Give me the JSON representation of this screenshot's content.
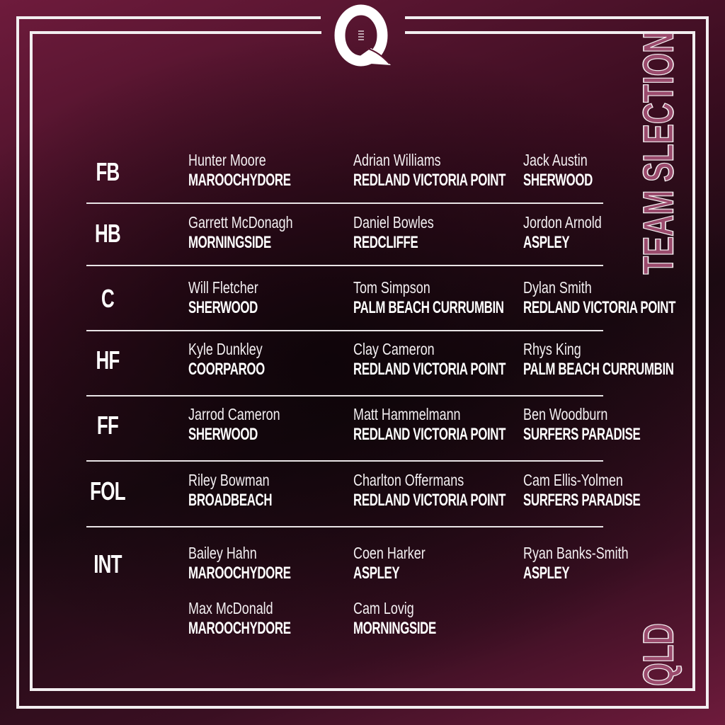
{
  "title": "TEAM SLECTION",
  "state": "QLD",
  "logo_text": "Q",
  "colors": {
    "maroon": "#6e1b3c",
    "dark": "#1c0a12",
    "white": "#ffffff"
  },
  "rows": [
    {
      "position": "FB",
      "players": [
        {
          "name": "Hunter Moore",
          "club": "MAROOCHYDORE"
        },
        {
          "name": "Adrian Williams",
          "club": "REDLAND VICTORIA POINT"
        },
        {
          "name": "Jack Austin",
          "club": "SHERWOOD"
        }
      ]
    },
    {
      "position": "HB",
      "players": [
        {
          "name": "Garrett McDonagh",
          "club": "MORNINGSIDE"
        },
        {
          "name": "Daniel Bowles",
          "club": "REDCLIFFE"
        },
        {
          "name": "Jordon Arnold",
          "club": "ASPLEY"
        }
      ]
    },
    {
      "position": "C",
      "players": [
        {
          "name": "Will Fletcher",
          "club": "SHERWOOD"
        },
        {
          "name": "Tom Simpson",
          "club": "PALM BEACH CURRUMBIN"
        },
        {
          "name": "Dylan Smith",
          "club": "REDLAND VICTORIA POINT"
        }
      ]
    },
    {
      "position": "HF",
      "players": [
        {
          "name": "Kyle Dunkley",
          "club": "COORPAROO"
        },
        {
          "name": "Clay Cameron",
          "club": "REDLAND VICTORIA POINT"
        },
        {
          "name": "Rhys King",
          "club": "PALM BEACH CURRUMBIN"
        }
      ]
    },
    {
      "position": "FF",
      "players": [
        {
          "name": "Jarrod Cameron",
          "club": "SHERWOOD"
        },
        {
          "name": "Matt Hammelmann",
          "club": "REDLAND VICTORIA POINT"
        },
        {
          "name": "Ben Woodburn",
          "club": "SURFERS PARADISE"
        }
      ]
    },
    {
      "position": "FOL",
      "players": [
        {
          "name": "Riley Bowman",
          "club": "BROADBEACH"
        },
        {
          "name": "Charlton Offermans",
          "club": "REDLAND VICTORIA POINT"
        },
        {
          "name": "Cam Ellis-Yolmen",
          "club": "SURFERS PARADISE"
        }
      ]
    },
    {
      "position": "INT",
      "players": [
        {
          "name": "Bailey Hahn",
          "club": "MAROOCHYDORE"
        },
        {
          "name": "Coen Harker",
          "club": "ASPLEY"
        },
        {
          "name": "Ryan Banks-Smith",
          "club": "ASPLEY"
        },
        {
          "name": "Max McDonald",
          "club": "MAROOCHYDORE"
        },
        {
          "name": "Cam Lovig",
          "club": "MORNINGSIDE"
        }
      ]
    }
  ]
}
